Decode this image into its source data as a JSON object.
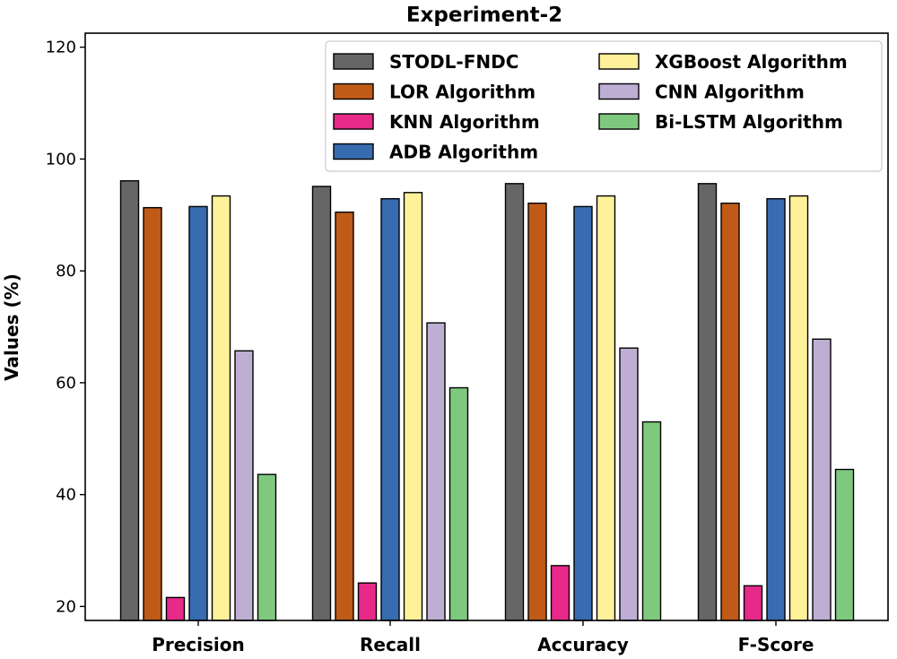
{
  "chart_data": {
    "type": "bar",
    "title": "Experiment-2",
    "xlabel": "",
    "ylabel": "Values (%)",
    "ylim": [
      17.5,
      122.5
    ],
    "yticks": [
      20,
      40,
      60,
      80,
      100,
      120
    ],
    "categories": [
      "Precision",
      "Recall",
      "Accuracy",
      "F-Score"
    ],
    "legend_position": "top-right",
    "series": [
      {
        "name": "STODL-FNDC",
        "color": "#666666",
        "values": [
          96.1,
          95.1,
          95.6,
          95.6
        ]
      },
      {
        "name": "LOR Algorithm",
        "color": "#bf5b17",
        "values": [
          91.3,
          90.5,
          92.1,
          92.1
        ]
      },
      {
        "name": "KNN Algorithm",
        "color": "#e7298a",
        "values": [
          21.6,
          24.2,
          27.3,
          23.7
        ]
      },
      {
        "name": "ADB Algorithm",
        "color": "#386cb0",
        "values": [
          91.5,
          92.9,
          91.5,
          92.9
        ]
      },
      {
        "name": "XGBoost Algorithm",
        "color": "#fff199",
        "values": [
          93.4,
          94.0,
          93.4,
          93.4
        ]
      },
      {
        "name": "CNN Algorithm",
        "color": "#beaed4",
        "values": [
          65.7,
          70.7,
          66.2,
          67.8
        ]
      },
      {
        "name": "Bi-LSTM Algorithm",
        "color": "#7fc97f",
        "values": [
          43.6,
          59.1,
          53.0,
          44.5
        ]
      }
    ]
  }
}
